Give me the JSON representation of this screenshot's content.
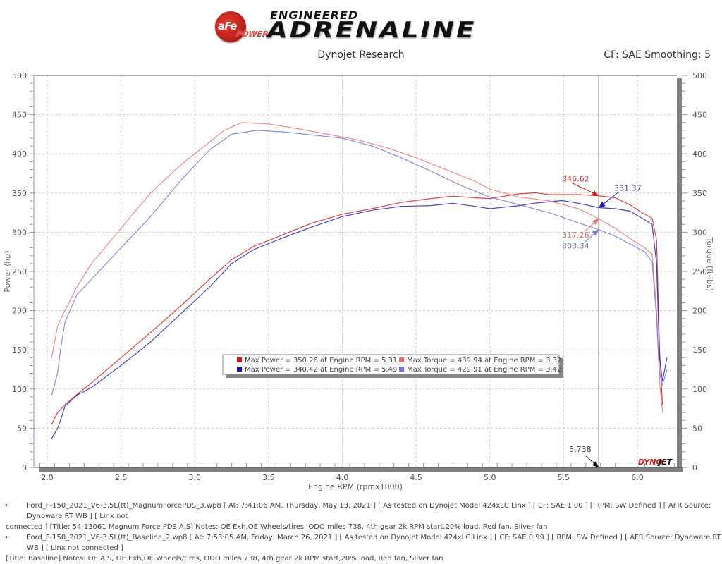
{
  "header": {
    "logo_badge": "aFe",
    "logo_power": "POWER",
    "logo_engineered": "ENGINEERED",
    "logo_main": "ADRENALINE",
    "subtitle": "Dynojet Research",
    "cf_label": "CF: SAE Smoothing: 5"
  },
  "colors": {
    "power_modified": "#d01818",
    "power_baseline": "#1a1ab0",
    "torque_modified": "#e87070",
    "torque_baseline": "#7070d8",
    "grid": "#cccccc",
    "axis_bar": "#808080"
  },
  "legend": {
    "rows": [
      {
        "power": "Max Power = 350.26 at Engine RPM = 5.31",
        "torque": "Max Torque = 439.94 at Engine RPM = 3.32"
      },
      {
        "power": "Max Power = 340.42 at Engine RPM = 5.49",
        "torque": "Max Torque = 429.91 at Engine RPM = 3.42"
      }
    ]
  },
  "cursor": {
    "rpm_label": "5.738",
    "values": {
      "power_modified": "346.62",
      "power_baseline": "331.37",
      "torque_modified": "317.26",
      "torque_baseline": "303.34"
    }
  },
  "watermark": "DYNOJET",
  "footer": {
    "run1_line1": "Ford_F-150_2021_V6-3.5L(tt)_MagnumForcePDS_3.wp8 [ At: 7:41:06 AM, Thursday, May 13, 2021 ] [ As tested on Dynojet Model 424xLC Linx ] [ CF: SAE 1.00 ] [ RPM: SW Defined ] [ AFR Source: Dynoware RT WB ] [ Linx not",
    "run1_line2": "connected ] [Title: 54-13061 Magnum Force PDS AIS]  Notes: OE Exh,OE Wheels/tires, ODO miles 738, 4th gear 2k RPM start,20% load, Red fan, Silver fan",
    "run2_line1": "Ford_F-150_2021_V6-3.5L(tt)_Baseline_2.wp8 [ At: 7:53:05 AM, Friday, March 26, 2021 ] [ As tested on Dynojet Model 424xLC Linx ] [ CF: SAE 0.99 ] [ RPM: SW Defined ] [ AFR Source: Dynoware RT WB ] [ Linx not connected ]",
    "run2_line2": "[Title: Baseline]  Notes: OE AIS, OE Exh,OE Wheels/tires, ODO miles 738, 4th gear 2k RPM start,20% load, Red fan, Silver fan"
  },
  "chart_data": {
    "type": "line",
    "title": "Dynojet Research",
    "subtitle": "CF: SAE Smoothing: 5",
    "xlabel": "Engine RPM (rpmx1000)",
    "ylabel": "Power (hp)",
    "y2label": "Torque (ft-lbs)",
    "xlim": [
      1.92,
      6.33
    ],
    "ylim": [
      0,
      500
    ],
    "y2lim": [
      0,
      500
    ],
    "xticks": [
      "2.0",
      "2.5",
      "3.0",
      "3.5",
      "4.0",
      "4.5",
      "5.0",
      "5.5",
      "6.0"
    ],
    "yticks": [
      "0",
      "50",
      "100",
      "150",
      "200",
      "250",
      "300",
      "350",
      "400",
      "450",
      "500"
    ],
    "grid": true,
    "legend_position": "center",
    "series": [
      {
        "name": "Power - Magnum Force PDS",
        "axis": "left",
        "color": "#d01818",
        "x": [
          2.03,
          2.07,
          2.12,
          2.2,
          2.3,
          2.5,
          2.7,
          2.9,
          3.1,
          3.25,
          3.4,
          3.6,
          3.8,
          4.0,
          4.2,
          4.4,
          4.6,
          4.75,
          4.9,
          5.0,
          5.1,
          5.2,
          5.31,
          5.4,
          5.5,
          5.6,
          5.738,
          5.85,
          5.95,
          6.03,
          6.1,
          6.13,
          6.15,
          6.17
        ],
        "y": [
          55,
          70,
          80,
          93,
          108,
          140,
          172,
          205,
          240,
          265,
          282,
          297,
          312,
          323,
          330,
          338,
          343,
          346,
          344,
          343,
          346,
          349,
          350.26,
          348,
          348,
          348,
          346.62,
          344,
          335,
          325,
          318,
          290,
          150,
          80
        ]
      },
      {
        "name": "Power - Baseline",
        "axis": "left",
        "color": "#1a1ab0",
        "x": [
          2.03,
          2.07,
          2.09,
          2.12,
          2.2,
          2.3,
          2.5,
          2.7,
          2.9,
          3.1,
          3.25,
          3.4,
          3.6,
          3.8,
          4.0,
          4.2,
          4.4,
          4.6,
          4.75,
          4.9,
          5.0,
          5.1,
          5.2,
          5.3,
          5.49,
          5.6,
          5.738,
          5.85,
          5.95,
          6.03,
          6.1,
          6.13,
          6.15,
          6.17,
          6.2
        ],
        "y": [
          37,
          50,
          60,
          78,
          92,
          102,
          130,
          160,
          195,
          230,
          260,
          278,
          293,
          307,
          320,
          328,
          333,
          334,
          337,
          333,
          330,
          332,
          334,
          337,
          340.42,
          337,
          331.37,
          330,
          327,
          318,
          310,
          260,
          140,
          110,
          140
        ]
      },
      {
        "name": "Torque - Magnum Force PDS",
        "axis": "right",
        "color": "#e87070",
        "x": [
          2.03,
          2.07,
          2.12,
          2.2,
          2.3,
          2.5,
          2.7,
          2.9,
          3.1,
          3.2,
          3.32,
          3.5,
          3.7,
          3.9,
          4.1,
          4.3,
          4.5,
          4.7,
          4.9,
          5.0,
          5.2,
          5.4,
          5.6,
          5.738,
          5.85,
          5.95,
          6.05,
          6.1,
          6.13,
          6.15,
          6.17
        ],
        "y": [
          140,
          180,
          200,
          230,
          260,
          305,
          350,
          385,
          415,
          430,
          439.94,
          438,
          432,
          425,
          418,
          408,
          395,
          380,
          365,
          355,
          345,
          340,
          330,
          317.26,
          305,
          292,
          280,
          272,
          200,
          110,
          70
        ]
      },
      {
        "name": "Torque - Baseline",
        "axis": "right",
        "color": "#7070d8",
        "x": [
          2.03,
          2.07,
          2.09,
          2.12,
          2.2,
          2.3,
          2.5,
          2.7,
          2.9,
          3.1,
          3.25,
          3.42,
          3.6,
          3.8,
          4.0,
          4.2,
          4.4,
          4.6,
          4.8,
          5.0,
          5.2,
          5.4,
          5.6,
          5.738,
          5.85,
          5.95,
          6.05,
          6.1,
          6.13,
          6.15,
          6.17,
          6.2
        ],
        "y": [
          92,
          120,
          150,
          185,
          220,
          240,
          280,
          320,
          365,
          405,
          425,
          429.91,
          428,
          424,
          420,
          410,
          395,
          378,
          360,
          345,
          335,
          325,
          312,
          303.34,
          295,
          285,
          275,
          262,
          190,
          120,
          105,
          125
        ]
      }
    ],
    "annotations": [
      {
        "text": "346.62",
        "x": 5.738,
        "y": 346.62,
        "series": "Power - Magnum Force PDS"
      },
      {
        "text": "331.37",
        "x": 5.738,
        "y": 331.37,
        "series": "Power - Baseline"
      },
      {
        "text": "317.26",
        "x": 5.738,
        "y": 317.26,
        "series": "Torque - Magnum Force PDS"
      },
      {
        "text": "303.34",
        "x": 5.738,
        "y": 303.34,
        "series": "Torque - Baseline"
      },
      {
        "text": "5.738",
        "x": 5.738,
        "y": 0,
        "type": "cursor"
      }
    ]
  }
}
